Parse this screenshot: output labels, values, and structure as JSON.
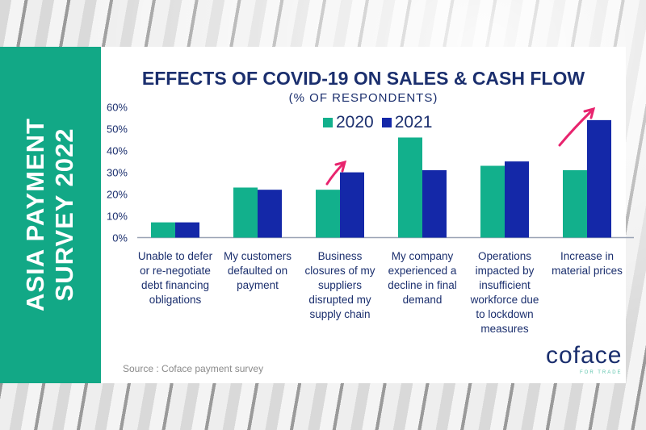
{
  "side_title": [
    "ASIA PAYMENT",
    "SURVEY 2022"
  ],
  "source": "Source : Coface payment survey",
  "logo": {
    "name": "coface",
    "tagline": "FOR TRADE"
  },
  "colors": {
    "2020": "#12b08c",
    "2021": "#1428a8",
    "accent_arrow": "#e8246e",
    "text": "#1b2f6e"
  },
  "chart_data": {
    "type": "bar",
    "title": "EFFECTS OF COVID-19 ON SALES & CASH FLOW",
    "subtitle": "(% OF RESPONDENTS)",
    "categories": [
      "Unable to defer or re-negotiate debt financing obligations",
      "My customers defaulted on payment",
      "Business closures of my suppliers disrupted my supply chain",
      "My company experienced a decline in final demand",
      "Operations impacted by insufficient workforce due to lockdown measures",
      "Increase in material prices"
    ],
    "category_lines": [
      [
        "Unable to defer",
        "or re-negotiate",
        "debt financing",
        "obligations"
      ],
      [
        "My customers",
        "defaulted on",
        "payment"
      ],
      [
        "Business",
        "closures of my",
        "suppliers",
        "disrupted my",
        "supply chain"
      ],
      [
        "My company",
        "experienced a",
        "decline in final",
        "demand"
      ],
      [
        "Operations",
        "impacted by",
        "insufficient",
        "workforce due",
        "to lockdown",
        "measures"
      ],
      [
        "Increase in",
        "material prices"
      ]
    ],
    "series": [
      {
        "name": "2020",
        "values": [
          7,
          23,
          22,
          46,
          33,
          31
        ]
      },
      {
        "name": "2021",
        "values": [
          7,
          22,
          30,
          31,
          35,
          54
        ]
      }
    ],
    "ylim": [
      0,
      60
    ],
    "yticks": [
      "0%",
      "10%",
      "20%",
      "30%",
      "40%",
      "50%",
      "60%"
    ],
    "legend": "top-center",
    "grid": false,
    "annotations": [
      "arrow-up over Business closures 2021",
      "arrow-up over Increase in material prices 2021"
    ]
  }
}
